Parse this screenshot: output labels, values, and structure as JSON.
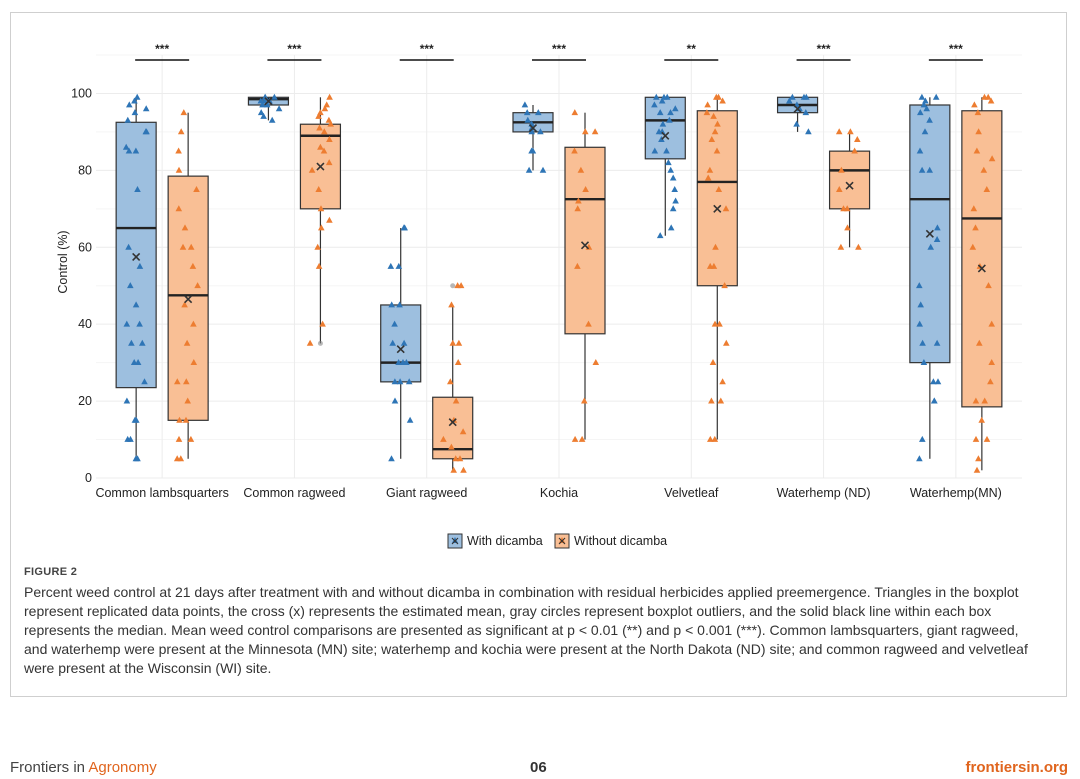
{
  "chart_data": {
    "type": "boxplot",
    "ylabel": "Control (%)",
    "ylim": [
      0,
      110
    ],
    "yticks": [
      0,
      20,
      40,
      60,
      80,
      100
    ],
    "categories": [
      "Common lambsquarters",
      "Common ragweed",
      "Giant ragweed",
      "Kochia",
      "Velvetleaf",
      "Waterhemp (ND)",
      "Waterhemp(MN)"
    ],
    "significance": [
      "***",
      "***",
      "***",
      "***",
      "**",
      "***",
      "***"
    ],
    "legend": [
      {
        "name": "With dicamba",
        "fill": "#9dbfdf",
        "point": "#2e75b6"
      },
      {
        "name": "Without dicamba",
        "fill": "#f9bf95",
        "point": "#ed7d31"
      }
    ],
    "series": [
      {
        "name": "With dicamba",
        "boxes": [
          {
            "q1": 23.5,
            "median": 65,
            "q3": 92.5,
            "lo": 5,
            "hi": 99,
            "mean": 57.5
          },
          {
            "q1": 97,
            "median": 98.5,
            "q3": 99,
            "lo": 93,
            "hi": 99,
            "mean": 98
          },
          {
            "q1": 25,
            "median": 30,
            "q3": 45,
            "lo": 5,
            "hi": 65,
            "mean": 33.5
          },
          {
            "q1": 90,
            "median": 92.5,
            "q3": 95,
            "lo": 80,
            "hi": 97,
            "mean": 91
          },
          {
            "q1": 83,
            "median": 93,
            "q3": 99,
            "lo": 63,
            "hi": 99,
            "mean": 89
          },
          {
            "q1": 95,
            "median": 97,
            "q3": 99,
            "lo": 90,
            "hi": 99,
            "mean": 96
          },
          {
            "q1": 30,
            "median": 72.5,
            "q3": 97,
            "lo": 5,
            "hi": 99,
            "mean": 63.5
          }
        ],
        "points": [
          [
            5,
            5,
            10,
            10,
            15,
            15,
            20,
            25,
            30,
            30,
            35,
            35,
            40,
            40,
            45,
            50,
            55,
            60,
            75,
            85,
            85,
            86,
            90,
            90,
            93,
            95,
            96,
            97,
            98,
            99
          ],
          [
            93,
            94,
            95,
            96,
            97,
            97,
            98,
            98,
            98,
            99,
            99,
            99
          ],
          [
            5,
            15,
            20,
            25,
            25,
            25,
            30,
            30,
            30,
            35,
            35,
            40,
            45,
            45,
            55,
            55,
            65,
            65
          ],
          [
            80,
            80,
            85,
            85,
            90,
            90,
            91,
            92,
            93,
            95,
            95,
            97
          ],
          [
            63,
            65,
            70,
            72,
            75,
            78,
            80,
            82,
            85,
            85,
            88,
            90,
            90,
            92,
            93,
            95,
            95,
            96,
            97,
            98,
            99,
            99,
            99
          ],
          [
            90,
            92,
            95,
            96,
            97,
            98,
            99,
            99,
            99
          ],
          [
            5,
            10,
            20,
            20,
            25,
            25,
            30,
            35,
            35,
            40,
            45,
            50,
            60,
            62,
            65,
            80,
            80,
            85,
            90,
            93,
            95,
            96,
            97,
            98,
            99,
            99
          ]
        ]
      },
      {
        "name": "Without dicamba",
        "boxes": [
          {
            "q1": 15,
            "median": 47.5,
            "q3": 78.5,
            "lo": 5,
            "hi": 95,
            "mean": 46.5
          },
          {
            "q1": 70,
            "median": 89,
            "q3": 92,
            "lo": 35,
            "hi": 99,
            "mean": 81
          },
          {
            "q1": 5,
            "median": 7.5,
            "q3": 21,
            "lo": 2,
            "hi": 45,
            "mean": 14.5
          },
          {
            "q1": 37.5,
            "median": 72.5,
            "q3": 86,
            "lo": 10,
            "hi": 95,
            "mean": 60.5
          },
          {
            "q1": 50,
            "median": 77,
            "q3": 95.5,
            "lo": 10,
            "hi": 99,
            "mean": 70
          },
          {
            "q1": 70,
            "median": 80,
            "q3": 85,
            "lo": 60,
            "hi": 90,
            "mean": 76
          },
          {
            "q1": 18.5,
            "median": 67.5,
            "q3": 95.5,
            "lo": 2,
            "hi": 99,
            "mean": 54.5
          }
        ],
        "points": [
          [
            5,
            5,
            10,
            10,
            15,
            15,
            20,
            25,
            25,
            30,
            35,
            40,
            45,
            50,
            55,
            60,
            60,
            65,
            70,
            75,
            80,
            85,
            90,
            95
          ],
          [
            35,
            40,
            55,
            60,
            65,
            67,
            70,
            75,
            80,
            82,
            85,
            86,
            88,
            90,
            91,
            92,
            93,
            94,
            95,
            96,
            97,
            99
          ],
          [
            2,
            2,
            5,
            5,
            8,
            10,
            12,
            15,
            20,
            25,
            30,
            35,
            35,
            45,
            50,
            50
          ],
          [
            10,
            10,
            20,
            30,
            40,
            55,
            60,
            70,
            72,
            75,
            80,
            85,
            90,
            90,
            95
          ],
          [
            10,
            10,
            20,
            20,
            25,
            30,
            35,
            40,
            40,
            50,
            55,
            55,
            60,
            70,
            75,
            78,
            80,
            85,
            88,
            90,
            92,
            94,
            95,
            97,
            98,
            99,
            99
          ],
          [
            60,
            60,
            65,
            70,
            70,
            75,
            80,
            85,
            88,
            90,
            90
          ],
          [
            2,
            5,
            10,
            10,
            15,
            20,
            20,
            25,
            30,
            35,
            40,
            50,
            55,
            60,
            65,
            70,
            75,
            80,
            83,
            85,
            90,
            95,
            97,
            98,
            99,
            99
          ]
        ],
        "outliers": [
          [],
          [
            35
          ],
          [
            50
          ],
          [],
          [],
          [],
          []
        ]
      }
    ]
  },
  "figure": {
    "label": "FIGURE 2",
    "caption": "Percent weed control at 21 days after treatment with and without dicamba in combination with residual herbicides applied preemergence. Triangles in the boxplot represent replicated data points, the cross (x) represents the estimated mean, gray circles represent boxplot outliers, and the solid black line within each box represents the median. Mean weed control comparisons are presented as significant at p < 0.01 (**) and p < 0.001 (***). Common lambsquarters, giant ragweed, and waterhemp were present at the Minnesota (MN) site; waterhemp and kochia were present at the North Dakota (ND) site; and common ragweed and velvetleaf were present at the Wisconsin (WI) site."
  },
  "footer": {
    "journal_prefix": "Frontiers in ",
    "journal_accent": "Agronomy",
    "page": "06",
    "site": "frontiersin.org"
  }
}
